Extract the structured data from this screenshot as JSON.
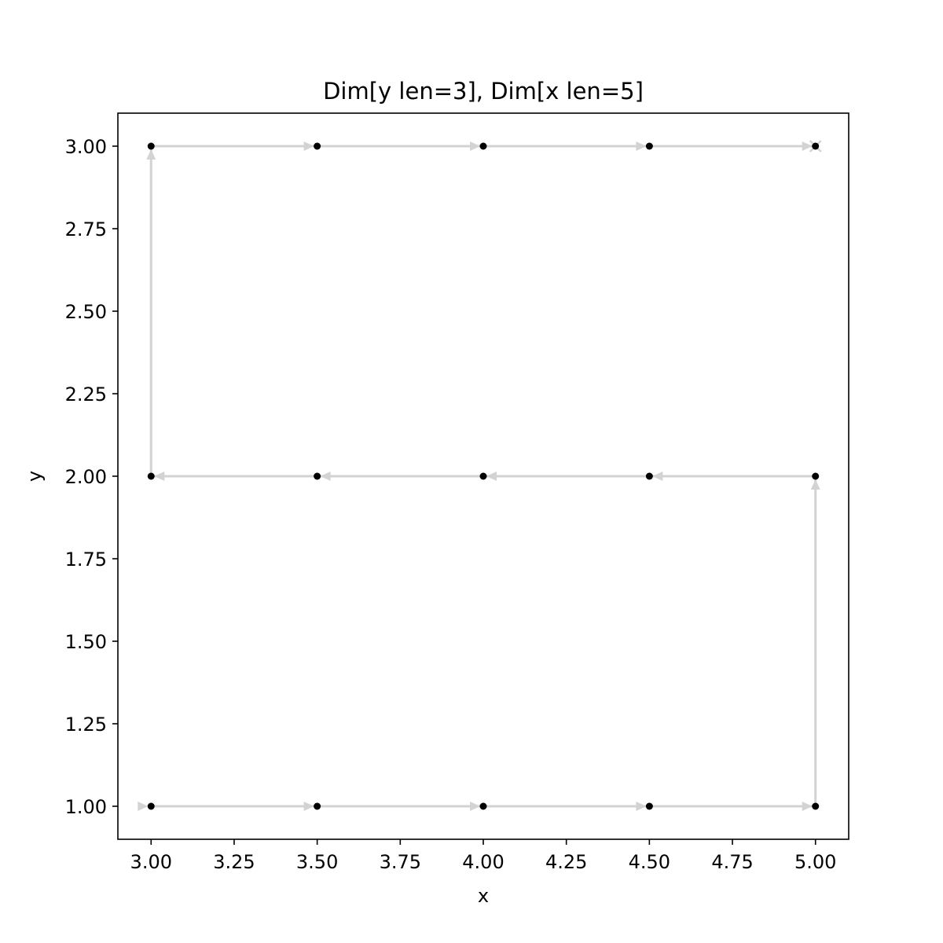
{
  "chart_data": {
    "type": "scatter",
    "title": "Dim[y len=3], Dim[x len=5]",
    "xlabel": "x",
    "ylabel": "y",
    "xlim": [
      2.9,
      5.1
    ],
    "ylim": [
      0.9,
      3.1
    ],
    "xticks": [
      "3.00",
      "3.25",
      "3.50",
      "3.75",
      "4.00",
      "4.25",
      "4.50",
      "4.75",
      "5.00"
    ],
    "yticks": [
      "1.00",
      "1.25",
      "1.50",
      "1.75",
      "2.00",
      "2.25",
      "2.50",
      "2.75",
      "3.00"
    ],
    "grid": false,
    "point_color": "#000000",
    "path_color": "#d3d3d3",
    "path": [
      [
        3.0,
        1.0
      ],
      [
        3.5,
        1.0
      ],
      [
        4.0,
        1.0
      ],
      [
        4.5,
        1.0
      ],
      [
        5.0,
        1.0
      ],
      [
        5.0,
        2.0
      ],
      [
        4.5,
        2.0
      ],
      [
        4.0,
        2.0
      ],
      [
        3.5,
        2.0
      ],
      [
        3.0,
        2.0
      ],
      [
        3.0,
        3.0
      ],
      [
        3.5,
        3.0
      ],
      [
        4.0,
        3.0
      ],
      [
        4.5,
        3.0
      ],
      [
        5.0,
        3.0
      ]
    ],
    "start_point": [
      3.0,
      1.0
    ],
    "end_point": [
      5.0,
      3.0
    ]
  }
}
